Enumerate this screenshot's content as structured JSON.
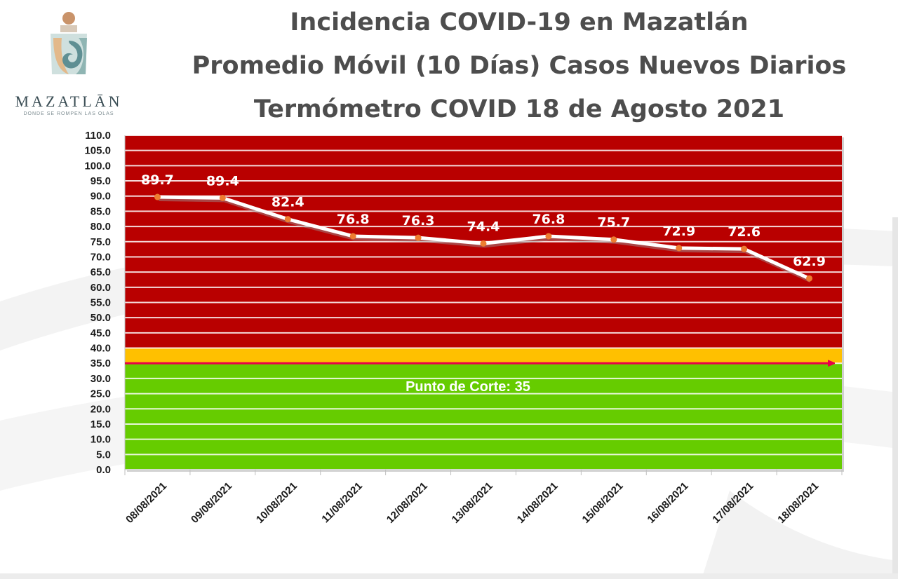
{
  "header": {
    "title_line1": "Incidencia COVID-19 en Mazatlán",
    "title_line2": "Promedio Móvil (10 Días) Casos Nuevos Diarios",
    "title_line3": "Termómetro COVID 18 de Agosto 2021"
  },
  "logo": {
    "wordmark": "MAZATLĀN",
    "tagline": "DONDE SE ROMPEN LAS OLAS"
  },
  "chart_data": {
    "type": "line",
    "title": "Incidencia COVID-19 en Mazatlán",
    "categories": [
      "08/08/2021",
      "09/08/2021",
      "10/08/2021",
      "11/08/2021",
      "12/08/2021",
      "13/08/2021",
      "14/08/2021",
      "15/08/2021",
      "16/08/2021",
      "17/08/2021",
      "18/08/2021"
    ],
    "series": [
      {
        "values": [
          89.7,
          89.4,
          82.4,
          76.8,
          76.3,
          74.4,
          76.8,
          75.7,
          72.9,
          72.6,
          62.9
        ]
      }
    ],
    "data_labels": [
      "89.7",
      "89.4",
      "82.4",
      "76.8",
      "76.3",
      "74.4",
      "76.8",
      "75.7",
      "72.9",
      "72.6",
      "62.9"
    ],
    "ylim": [
      0,
      110
    ],
    "ytick_labels": [
      "0.0",
      "5.0",
      "10.0",
      "15.0",
      "20.0",
      "25.0",
      "30.0",
      "35.0",
      "40.0",
      "45.0",
      "50.0",
      "55.0",
      "60.0",
      "65.0",
      "70.0",
      "75.0",
      "80.0",
      "85.0",
      "90.0",
      "95.0",
      "100.0",
      "105.0",
      "110.0"
    ],
    "grid": true,
    "legend": "none",
    "cutoff": {
      "value": 35,
      "label": "Punto de Corte: 35"
    },
    "bands": [
      {
        "from": 0,
        "to": 35,
        "color": "#66cc00"
      },
      {
        "from": 35,
        "to": 40,
        "color": "#ffc000"
      },
      {
        "from": 40,
        "to": 110,
        "color": "#b90000"
      }
    ],
    "colors": {
      "line": "#ffffff",
      "marker": "#ed7d31",
      "cutoff_line": "#e8004a"
    }
  }
}
